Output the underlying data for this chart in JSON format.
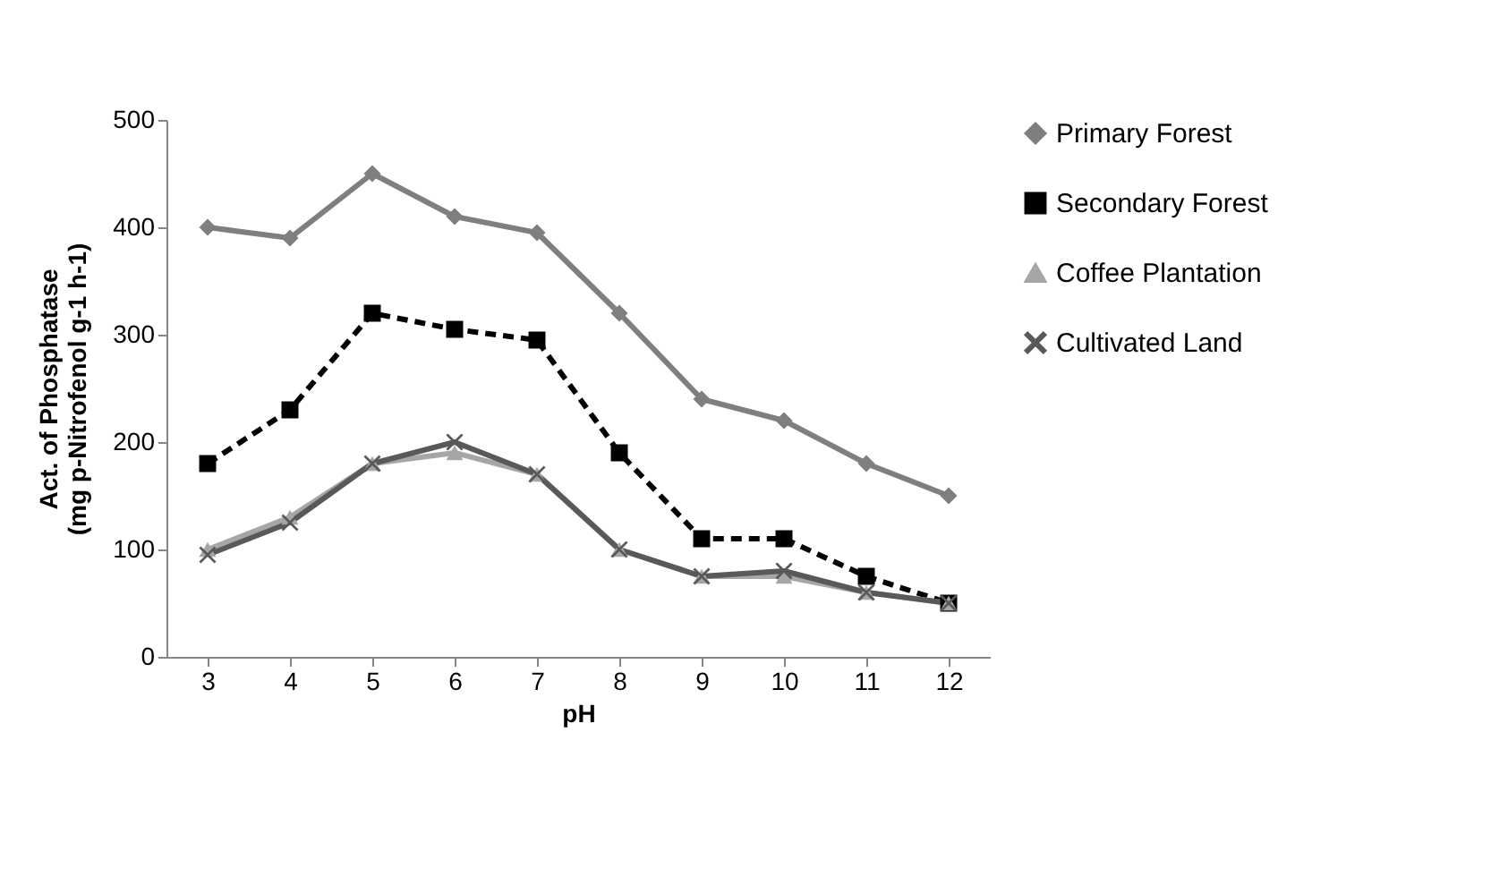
{
  "chart_data": {
    "type": "line",
    "xlabel": "pH",
    "ylabel": "Act. of Phosphatase\n(mg p-Nitrofenol g-1 h-1)",
    "categories": [
      "3",
      "4",
      "5",
      "6",
      "7",
      "8",
      "9",
      "10",
      "11",
      "12"
    ],
    "ylim": [
      0,
      500
    ],
    "yticks": [
      0,
      100,
      200,
      300,
      400,
      500
    ],
    "grid": false,
    "legend": "right",
    "series": [
      {
        "name": "Primary Forest",
        "color": "#7f7f7f",
        "marker": "diamond",
        "line_style": "solid",
        "values": [
          400,
          390,
          450,
          410,
          395,
          320,
          240,
          220,
          180,
          150
        ]
      },
      {
        "name": "Secondary Forest",
        "color": "#000000",
        "marker": "square",
        "line_style": "dashed",
        "values": [
          180,
          230,
          320,
          305,
          295,
          190,
          110,
          110,
          75,
          50
        ]
      },
      {
        "name": "Coffee Plantation",
        "color": "#a6a6a6",
        "marker": "triangle",
        "line_style": "solid",
        "values": [
          100,
          130,
          180,
          190,
          170,
          100,
          75,
          75,
          60,
          50
        ]
      },
      {
        "name": "Cultivated Land",
        "color": "#595959",
        "marker": "cross",
        "line_style": "solid",
        "values": [
          95,
          125,
          180,
          200,
          170,
          100,
          75,
          80,
          60,
          50
        ]
      }
    ]
  }
}
